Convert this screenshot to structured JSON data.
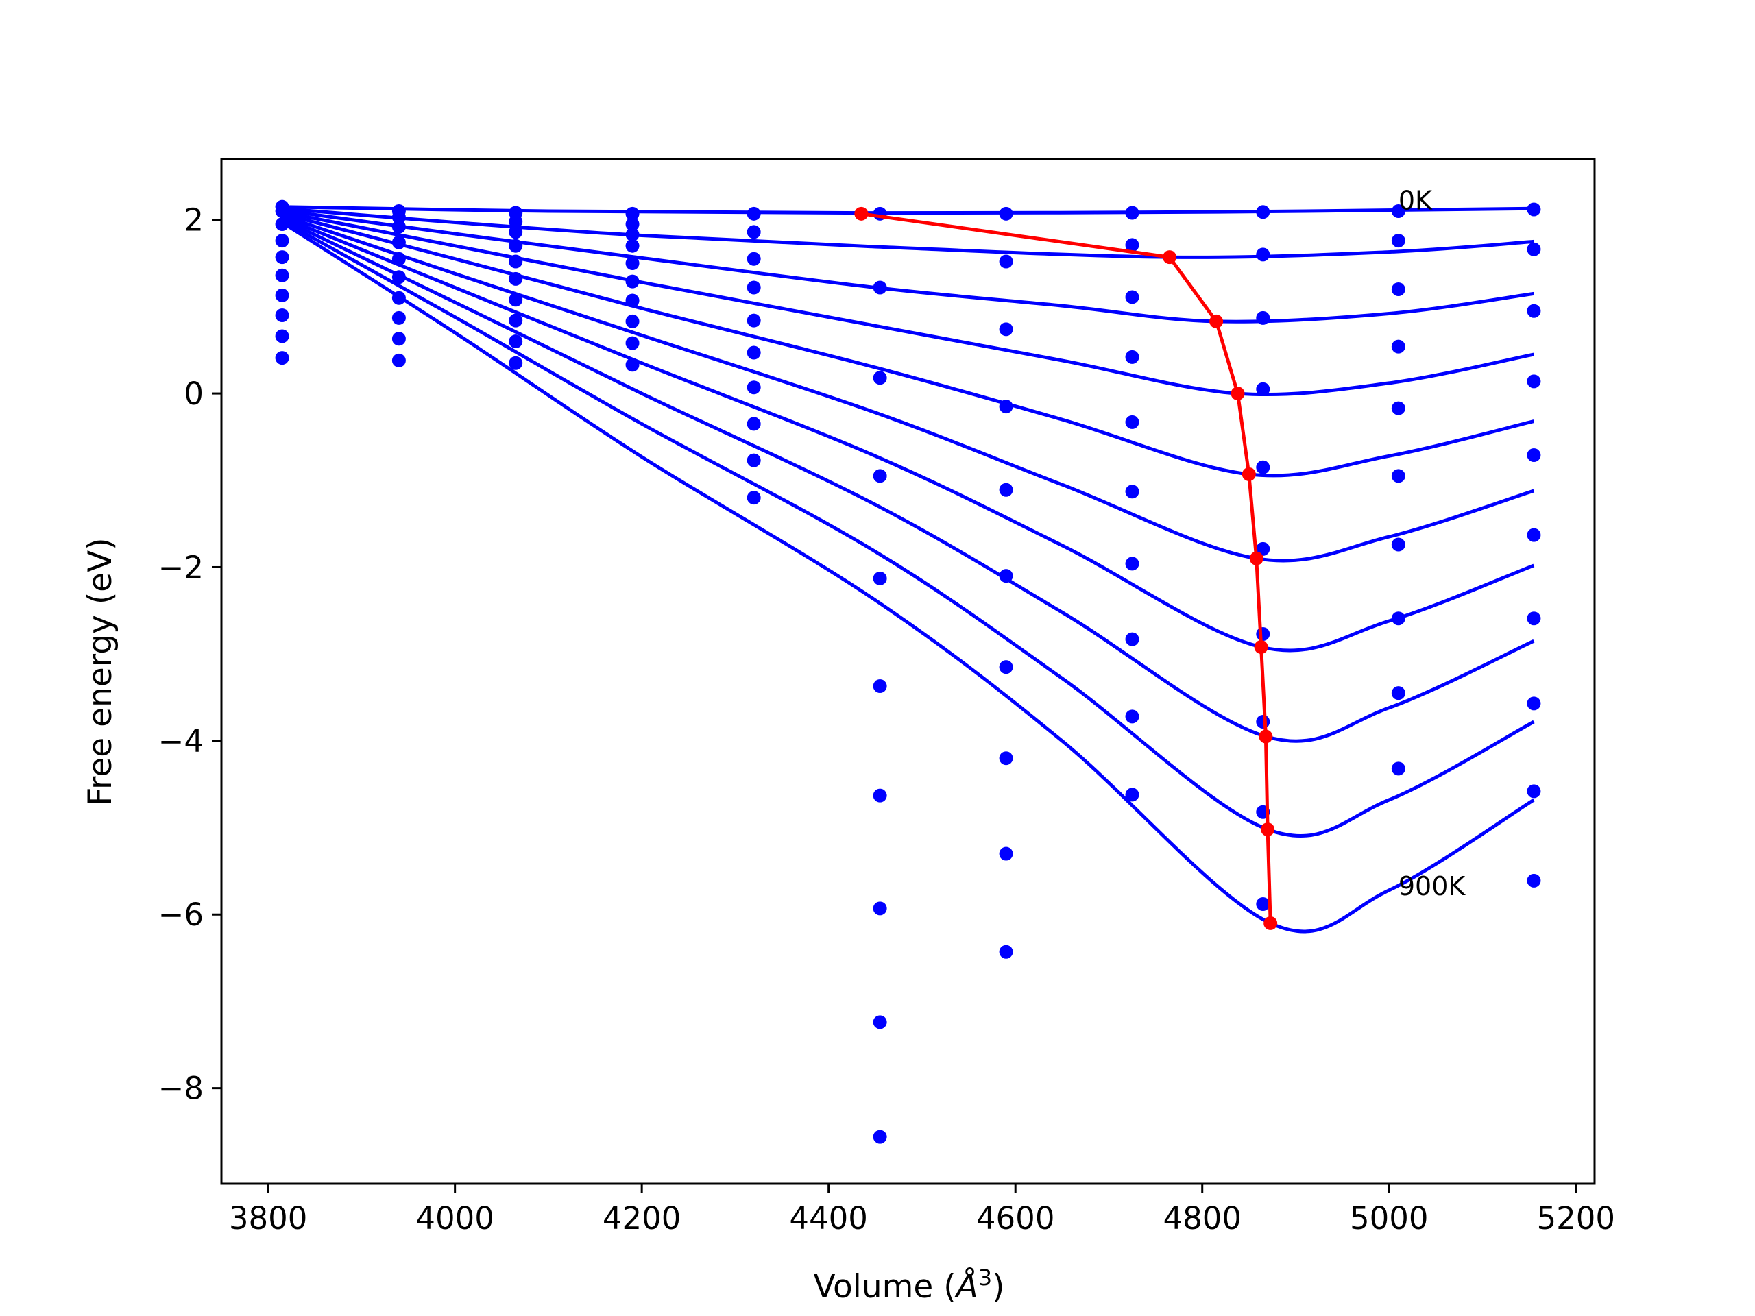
{
  "chart_data": {
    "type": "line",
    "title": "",
    "xlabel": "Volume (",
    "xlabel_italic": "Å",
    "xlabel_sup": "3",
    "xlabel_end": ")",
    "ylabel": "Free energy (eV)",
    "xlim": [
      3750,
      5220
    ],
    "ylim": [
      -9.1,
      2.7
    ],
    "xticks": [
      3800,
      4000,
      4200,
      4400,
      4600,
      4800,
      5000,
      5200
    ],
    "yticks": [
      2,
      0,
      -2,
      -4,
      -6,
      -8
    ],
    "ytick_labels": [
      "2",
      "0",
      "−2",
      "−4",
      "−6",
      "−8"
    ],
    "grid": false,
    "colors": {
      "fit_curves": "#0000ff",
      "data_points": "#0000ff",
      "minimum_path": "#ff0000"
    },
    "annotations": [
      {
        "text": "0K",
        "x": 5010,
        "y": 2.2
      },
      {
        "text": "900K",
        "x": 5010,
        "y": -5.7
      }
    ],
    "volumes": [
      3815,
      3940,
      4065,
      4190,
      4320,
      4455,
      4590,
      4725,
      4865,
      5010,
      5155
    ],
    "energy_points": [
      [
        2.15,
        2.1,
        2.08,
        2.07,
        2.07,
        2.07,
        2.07,
        2.08,
        2.09,
        2.1,
        2.12
      ],
      [
        2.1,
        2.03,
        1.98,
        1.95,
        1.86,
        null,
        null,
        1.71,
        1.6,
        1.76,
        1.66
      ],
      [
        1.95,
        1.92,
        1.86,
        1.83,
        1.55,
        1.22,
        1.52,
        1.11,
        0.87,
        1.2,
        0.95
      ],
      [
        1.76,
        1.74,
        1.7,
        1.7,
        1.22,
        0.18,
        0.74,
        0.42,
        0.05,
        0.54,
        0.14
      ],
      [
        1.57,
        1.55,
        1.52,
        1.5,
        0.84,
        -0.95,
        -0.15,
        -0.33,
        -0.85,
        -0.17,
        -0.71
      ],
      [
        1.36,
        1.34,
        1.32,
        1.29,
        0.47,
        -2.13,
        -1.11,
        -1.13,
        -1.79,
        -0.95,
        -1.63
      ],
      [
        1.13,
        1.1,
        1.08,
        1.07,
        0.07,
        -3.37,
        -2.1,
        -1.96,
        -2.77,
        -1.74,
        -2.59
      ],
      [
        0.9,
        0.87,
        0.84,
        0.83,
        -0.35,
        -4.63,
        -3.15,
        -2.83,
        -3.78,
        -2.59,
        -3.57
      ],
      [
        0.66,
        0.63,
        0.6,
        0.58,
        -0.77,
        -5.93,
        -4.2,
        -3.72,
        -4.82,
        -3.45,
        -4.58
      ],
      [
        0.41,
        0.38,
        0.35,
        0.33,
        -1.2,
        -7.24,
        -5.3,
        -4.62,
        -5.88,
        -4.32,
        -5.61
      ],
      [
        null,
        null,
        null,
        null,
        null,
        -8.56,
        -6.43,
        null,
        null,
        null,
        null
      ]
    ],
    "fit_series": [
      {
        "curve": [
          [
            3815,
            2.15
          ],
          [
            4100,
            2.1
          ],
          [
            4435,
            2.08
          ],
          [
            4800,
            2.09
          ],
          [
            5155,
            2.13
          ]
        ]
      },
      {
        "curve": [
          [
            3815,
            2.13
          ],
          [
            4000,
            1.97
          ],
          [
            4200,
            1.82
          ],
          [
            4450,
            1.69
          ],
          [
            4765,
            1.57
          ],
          [
            5000,
            1.63
          ],
          [
            5155,
            1.75
          ]
        ]
      },
      {
        "curve": [
          [
            3815,
            2.11
          ],
          [
            4000,
            1.84
          ],
          [
            4200,
            1.56
          ],
          [
            4450,
            1.22
          ],
          [
            4650,
            1.01
          ],
          [
            4815,
            0.83
          ],
          [
            5000,
            0.92
          ],
          [
            5155,
            1.15
          ]
        ]
      },
      {
        "curve": [
          [
            3815,
            2.09
          ],
          [
            4000,
            1.7
          ],
          [
            4200,
            1.28
          ],
          [
            4450,
            0.78
          ],
          [
            4650,
            0.38
          ],
          [
            4838,
            0.0
          ],
          [
            5000,
            0.12
          ],
          [
            5155,
            0.45
          ]
        ]
      },
      {
        "curve": [
          [
            3815,
            2.07
          ],
          [
            4000,
            1.55
          ],
          [
            4200,
            0.98
          ],
          [
            4450,
            0.3
          ],
          [
            4650,
            -0.3
          ],
          [
            4850,
            -0.93
          ],
          [
            5000,
            -0.72
          ],
          [
            5155,
            -0.32
          ]
        ]
      },
      {
        "curve": [
          [
            3815,
            2.05
          ],
          [
            4000,
            1.38
          ],
          [
            4200,
            0.67
          ],
          [
            4450,
            -0.22
          ],
          [
            4650,
            -1.05
          ],
          [
            4858,
            -1.9
          ],
          [
            5000,
            -1.65
          ],
          [
            5155,
            -1.12
          ]
        ]
      },
      {
        "curve": [
          [
            3815,
            2.03
          ],
          [
            4000,
            1.22
          ],
          [
            4200,
            0.35
          ],
          [
            4450,
            -0.72
          ],
          [
            4650,
            -1.75
          ],
          [
            4863,
            -2.92
          ],
          [
            5000,
            -2.62
          ],
          [
            5155,
            -1.98
          ]
        ]
      },
      {
        "curve": [
          [
            3815,
            2.01
          ],
          [
            4000,
            1.05
          ],
          [
            4200,
            0.0
          ],
          [
            4450,
            -1.28
          ],
          [
            4650,
            -2.52
          ],
          [
            4868,
            -3.95
          ],
          [
            5000,
            -3.62
          ],
          [
            5155,
            -2.85
          ]
        ]
      },
      {
        "curve": [
          [
            3815,
            1.99
          ],
          [
            4000,
            0.88
          ],
          [
            4200,
            -0.35
          ],
          [
            4450,
            -1.82
          ],
          [
            4650,
            -3.28
          ],
          [
            4870,
            -5.02
          ],
          [
            5000,
            -4.68
          ],
          [
            5155,
            -3.78
          ]
        ]
      },
      {
        "curve": [
          [
            3815,
            1.97
          ],
          [
            4000,
            0.7
          ],
          [
            4200,
            -0.73
          ],
          [
            4450,
            -2.38
          ],
          [
            4650,
            -4.0
          ],
          [
            4873,
            -6.1
          ],
          [
            5000,
            -5.72
          ],
          [
            5155,
            -4.68
          ]
        ]
      }
    ],
    "minimum_path": {
      "x": [
        4435,
        4765,
        4815,
        4838,
        4850,
        4858,
        4863,
        4868,
        4870,
        4873
      ],
      "y": [
        2.07,
        1.57,
        0.83,
        0.0,
        -0.93,
        -1.9,
        -2.92,
        -3.95,
        -5.02,
        -6.1
      ]
    }
  }
}
